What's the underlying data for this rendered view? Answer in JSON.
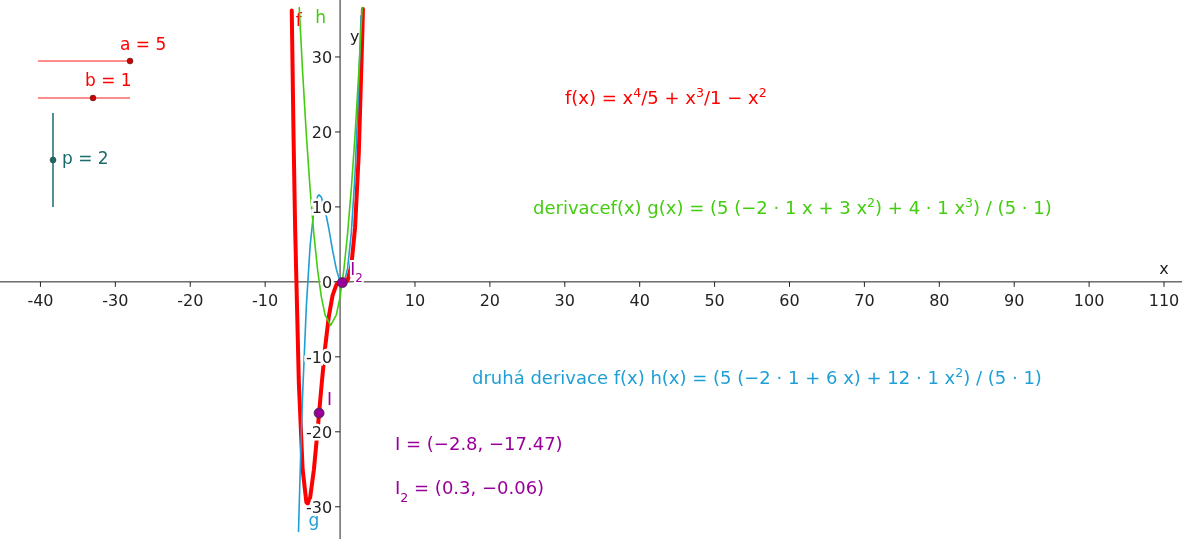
{
  "chart_data": {
    "type": "line",
    "xlabel": "x",
    "ylabel": "y",
    "xlim": [
      -45.4,
      112.4
    ],
    "ylim": [
      -34.3,
      37.6
    ],
    "xticks": [
      -40,
      -30,
      -20,
      -10,
      10,
      20,
      30,
      40,
      50,
      60,
      70,
      80,
      90,
      100,
      110
    ],
    "yticks": [
      -30,
      -20,
      -10,
      0,
      10,
      20,
      30
    ],
    "grid": false,
    "series": [
      {
        "name": "f",
        "color": "#ff0000",
        "x": [
          -6.45,
          -6.2,
          -6,
          -5.5,
          -5,
          -4.5,
          -4.33,
          -4,
          -3.5,
          -3,
          -2.5,
          -2,
          -1.5,
          -1,
          -0.5,
          0,
          0.5,
          1,
          1.5,
          2,
          2.5,
          3,
          3.05
        ],
        "values": [
          36.2,
          18.8,
          7.2,
          -13.6,
          -25,
          -29.4,
          -29.6,
          -28.8,
          -25.1,
          -19.8,
          -14.1,
          -8.8,
          -4.6,
          -1.8,
          -0.4,
          0,
          -0.1,
          0.2,
          2.1,
          7.2,
          17.2,
          34.2,
          36.4
        ]
      },
      {
        "name": "g",
        "color": "#1e9fd6",
        "x": [
          -5.55,
          -5.25,
          -5,
          -4.5,
          -4,
          -3.5,
          -3,
          -2.8,
          -2.5,
          -2,
          -1.5,
          -1,
          -0.5,
          0,
          0.3,
          0.5,
          1,
          1.5,
          2,
          2.5,
          2.8
        ],
        "values": [
          -33.3,
          -22.6,
          -15,
          -3.2,
          4.8,
          9.5,
          11.4,
          11.6,
          11.3,
          9.6,
          7.1,
          4.2,
          1.7,
          0,
          -0.3,
          -0.2,
          1.8,
          6.5,
          14.4,
          26.3,
          35.5
        ]
      },
      {
        "name": "h",
        "color": "#44cc11",
        "x": [
          -5.45,
          -5,
          -4.5,
          -4,
          -3.5,
          -3,
          -2.5,
          -2,
          -1.25,
          -0.5,
          0,
          0.5,
          1,
          1.5,
          2,
          2.5,
          2.95
        ],
        "values": [
          36.6,
          28,
          19.6,
          12.4,
          6.4,
          1.6,
          -2,
          -4.4,
          -5.8,
          -4.4,
          -2,
          1.6,
          6.4,
          12.4,
          19.6,
          28,
          36.6
        ]
      },
      {
        "name": "I",
        "type": "scatter",
        "marker": "circle",
        "color": "#990099",
        "x": [
          -2.8
        ],
        "values": [
          -17.5
        ]
      },
      {
        "name": "I$_{2}$",
        "type": "scatter",
        "marker": "circle",
        "color": "#990099",
        "x": [
          0.3
        ],
        "values": [
          -0.1
        ]
      }
    ],
    "annotations": [
      "a = 5",
      "b = 1",
      "p = 2",
      "f(x) = x$^{4}$/5 + x$^{3}$/1 − x$^{2}$",
      "derivacef(x) g(x) = (5 (−2 · 1 x + 3 x$^{2}$) + 4 · 1 x$^{3}$) / (5 · 1)",
      "druhá derivace f(x) h(x) = (5 (−2 · 1 + 6 x) + 12 · 1 x$^{2}$) / (5 · 1)",
      "I = (−2.8, −17.47)",
      "I$_{2}$ = (0.3, −0.06)"
    ]
  }
}
